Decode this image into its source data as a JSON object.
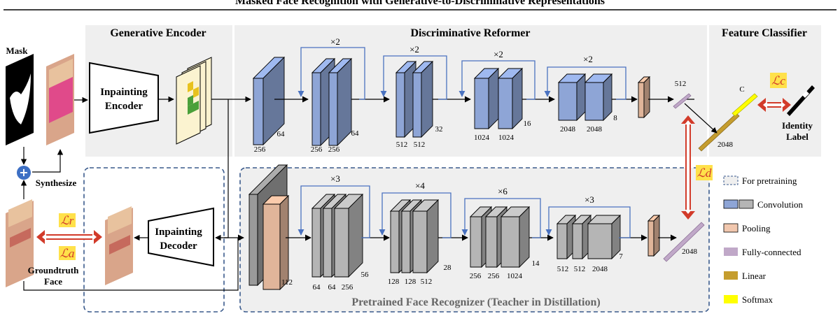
{
  "title": "Masked Face Recognition with Generative-to-Discriminative Representations",
  "sections": {
    "generative_encoder": "Generative Encoder",
    "discriminative_reformer": "Discriminative Reformer",
    "feature_classifier": "Feature Classifier",
    "teacher": "Pretrained Face Recognizer (Teacher in Distillation)"
  },
  "inputs": {
    "mask": "Mask",
    "synthesize": "Synthesize",
    "groundtruth_1": "Groundtruth",
    "groundtruth_2": "Face"
  },
  "modules": {
    "encoder_1": "Inpainting",
    "encoder_2": "Encoder",
    "decoder_1": "Inpainting",
    "decoder_2": "Decoder"
  },
  "reformer": {
    "repeats": [
      "×2",
      "×2",
      "×2",
      "×2"
    ],
    "labels": {
      "first_w": "256",
      "first_d": "64",
      "b1_w1": "256",
      "b1_w2": "256",
      "b1_d": "64",
      "b2_w1": "512",
      "b2_w2": "512",
      "b2_d": "32",
      "b3_w1": "1024",
      "b3_w2": "1024",
      "b3_d": "16",
      "b4_w1": "2048",
      "b4_w2": "2048",
      "b4_d": "8",
      "fc": "512"
    }
  },
  "teacher_net": {
    "repeats": [
      "×3",
      "×4",
      "×6",
      "×3"
    ],
    "labels": {
      "first_d": "112",
      "b1_w1": "64",
      "b1_w2": "64",
      "b1_w3": "256",
      "b1_d": "56",
      "b2_w1": "128",
      "b2_w2": "128",
      "b2_w3": "512",
      "b2_d": "28",
      "b3_w1": "256",
      "b3_w2": "256",
      "b3_w3": "1024",
      "b3_d": "14",
      "b4_w1": "512",
      "b4_w2": "512",
      "b4_w3": "2048",
      "b4_d": "7",
      "fc": "2048"
    }
  },
  "classifier": {
    "c_label": "C",
    "linear_label": "2048",
    "identity_1": "Identity",
    "identity_2": "Label"
  },
  "losses": {
    "lc": "ℒc",
    "ld": "ℒd",
    "lr": "ℒr",
    "la": "ℒa"
  },
  "legend": [
    {
      "key": "pretraining",
      "label": "For pretraining"
    },
    {
      "key": "conv",
      "label": "Convolution"
    },
    {
      "key": "pool",
      "label": "Pooling"
    },
    {
      "key": "fc",
      "label": "Fully-connected"
    },
    {
      "key": "linear",
      "label": "Linear"
    },
    {
      "key": "softmax",
      "label": "Softmax"
    }
  ],
  "colors": {
    "conv_blue": "#8ea5d6",
    "conv_gray": "#b5b5b5",
    "pool": "#e0b59a",
    "fc": "#c0a8c8",
    "linear": "#c59d2e",
    "softmax": "#ffff00",
    "arrow_blue": "#4a72c0",
    "loss_red": "#d23b2a",
    "loss_bg": "#ffe14a",
    "panel": "#efefef",
    "dash": "#3a5a8c"
  }
}
